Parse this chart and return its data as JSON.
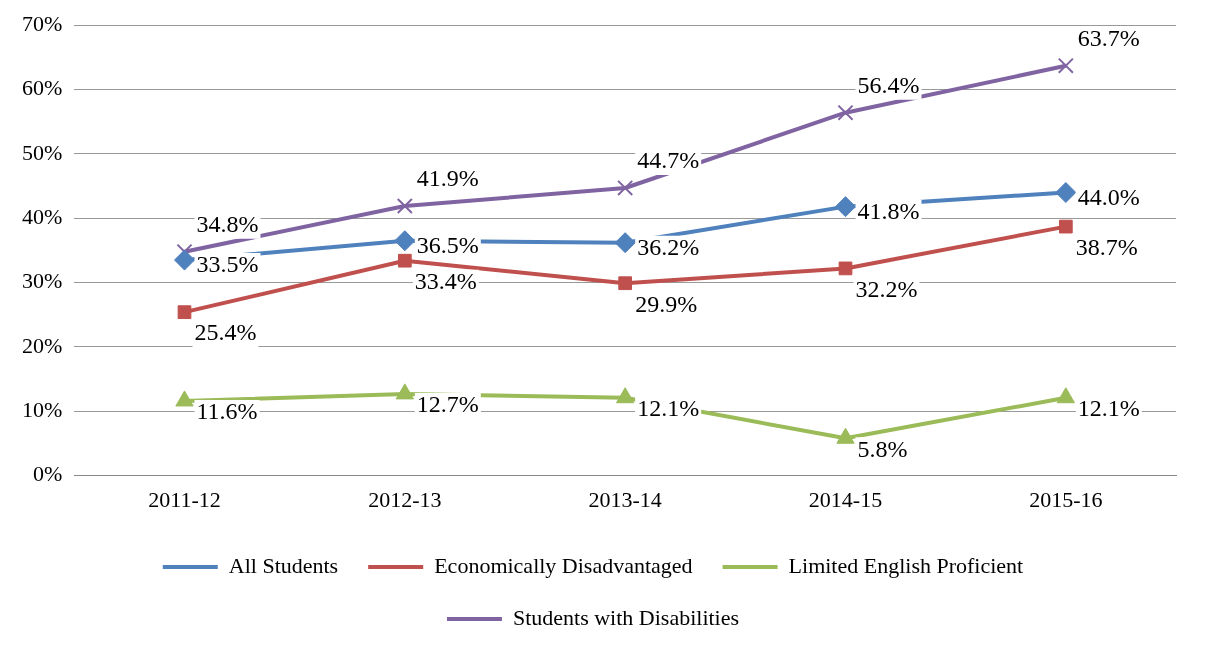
{
  "chart_data": {
    "type": "line",
    "categories": [
      "2011-12",
      "2012-13",
      "2013-14",
      "2014-15",
      "2015-16"
    ],
    "series": [
      {
        "name": "All Students",
        "color": "#4f81bd",
        "marker": "diamond",
        "values": [
          33.5,
          36.5,
          36.2,
          41.8,
          44.0
        ],
        "value_labels": [
          "33.5%",
          "36.5%",
          "36.2%",
          "41.8%",
          "44.0%"
        ]
      },
      {
        "name": "Economically Disadvantaged",
        "color": "#c0504d",
        "marker": "square",
        "values": [
          25.4,
          33.4,
          29.9,
          32.2,
          38.7
        ],
        "value_labels": [
          "25.4%",
          "33.4%",
          "29.9%",
          "32.2%",
          "38.7%"
        ]
      },
      {
        "name": "Limited English Proficient",
        "color": "#9bbb59",
        "marker": "triangle",
        "values": [
          11.6,
          12.7,
          12.1,
          5.8,
          12.1
        ],
        "value_labels": [
          "11.6%",
          "12.7%",
          "12.1%",
          "5.8%",
          "12.1%"
        ]
      },
      {
        "name": "Students with Disabilities",
        "color": "#8064a2",
        "marker": "cross",
        "values": [
          34.8,
          41.9,
          44.7,
          56.4,
          63.7
        ],
        "value_labels": [
          "34.8%",
          "41.9%",
          "44.7%",
          "56.4%",
          "63.7%"
        ]
      }
    ],
    "ylim": [
      0,
      70
    ],
    "yticks": [
      {
        "value": 0,
        "label": "0%"
      },
      {
        "value": 10,
        "label": "10%"
      },
      {
        "value": 20,
        "label": "20%"
      },
      {
        "value": 30,
        "label": "30%"
      },
      {
        "value": 40,
        "label": "40%"
      },
      {
        "value": 50,
        "label": "50%"
      },
      {
        "value": 60,
        "label": "60%"
      },
      {
        "value": 70,
        "label": "70%"
      }
    ],
    "grid": "y",
    "legend": "bottom",
    "line_style": "solid"
  }
}
